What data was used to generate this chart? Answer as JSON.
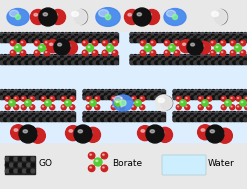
{
  "bg_color": "#e8e8e8",
  "membrane_bg": "#ddeeff",
  "go_color": "#1a1a1a",
  "go_highlight": "#555555",
  "borate_green": "#55cc33",
  "borate_red": "#cc2222",
  "borate_pink": "#dd88aa",
  "co2_black": "#111111",
  "co2_red": "#cc2222",
  "n2_blue": "#4488ee",
  "water_blue": "#aaccee",
  "water_white": "#ddeeff",
  "legend_water": "#cceeee",
  "legend_labels": [
    "GO",
    "Borate",
    "Water"
  ],
  "font_size": 6.5,
  "font_family": "DejaVu Sans"
}
